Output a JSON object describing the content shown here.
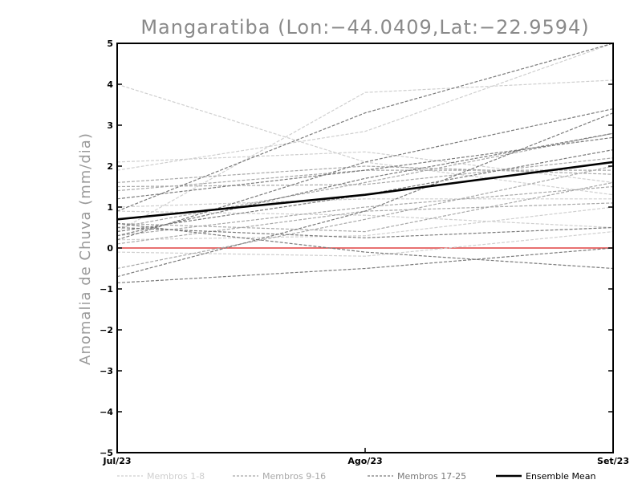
{
  "chart_data": {
    "type": "line",
    "title": "Mangaratiba (Lon:−44.0409,Lat:−22.9594)",
    "xlabel": "",
    "ylabel": "Anomalia de Chuva (mm/dia)",
    "categories": [
      "Jul/23",
      "Ago/23",
      "Set/23"
    ],
    "ylim": [
      -5,
      5
    ],
    "yticks": [
      "−5",
      "−4",
      "−3",
      "−2",
      "−1",
      "0",
      "1",
      "2",
      "3",
      "4",
      "5"
    ],
    "zero_line_color": "#e04040",
    "groups": [
      {
        "name": "Membros 1-8",
        "color": "#cfcfcf",
        "members": [
          [
            4.0,
            2.1,
            1.3
          ],
          [
            1.9,
            2.85,
            5.0
          ],
          [
            2.1,
            2.35,
            1.6
          ],
          [
            0.4,
            3.8,
            4.1
          ],
          [
            0.2,
            0.3,
            1.0
          ],
          [
            -0.1,
            -0.2,
            0.4
          ],
          [
            1.0,
            1.2,
            1.2
          ],
          [
            0.9,
            0.8,
            0.5
          ]
        ]
      },
      {
        "name": "Membros 9-16",
        "color": "#a8a8a8",
        "members": [
          [
            1.6,
            2.0,
            1.8
          ],
          [
            1.5,
            1.55,
            2.2
          ],
          [
            0.3,
            1.0,
            1.5
          ],
          [
            -0.5,
            0.7,
            2.0
          ],
          [
            0.5,
            1.6,
            2.8
          ],
          [
            0.1,
            0.9,
            1.1
          ],
          [
            1.4,
            1.9,
            1.9
          ],
          [
            0.6,
            0.4,
            1.6
          ]
        ]
      },
      {
        "name": "Membros 17-25",
        "color": "#7a7a7a",
        "members": [
          [
            0.9,
            3.3,
            5.0
          ],
          [
            0.2,
            2.1,
            3.4
          ],
          [
            -0.85,
            -0.5,
            0.0
          ],
          [
            0.5,
            0.25,
            0.5
          ],
          [
            -0.7,
            0.9,
            3.3
          ],
          [
            0.4,
            1.3,
            2.4
          ],
          [
            1.2,
            1.9,
            2.7
          ],
          [
            0.3,
            1.7,
            2.8
          ],
          [
            0.6,
            -0.1,
            -0.5
          ]
        ]
      }
    ],
    "mean": {
      "name": "Ensemble Mean",
      "color": "#000000",
      "values": [
        0.7,
        1.3,
        2.1
      ]
    },
    "legend": [
      "Membros 1-8",
      "Membros 9-16",
      "Membros 17-25",
      "Ensemble Mean"
    ],
    "legend_position": "bottom",
    "grid": false
  }
}
